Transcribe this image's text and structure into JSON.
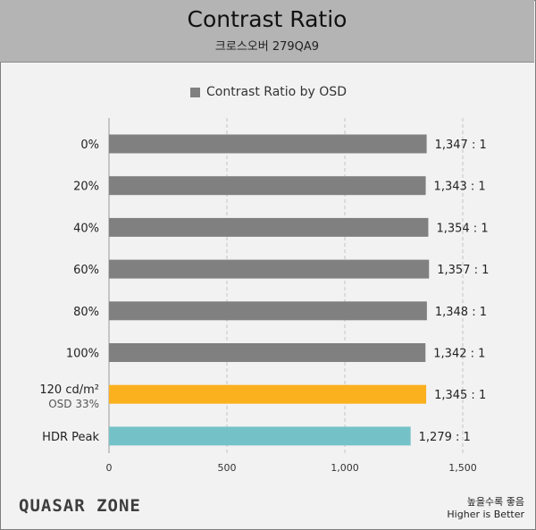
{
  "header": {
    "title": "Contrast Ratio",
    "subtitle": "크로스오버 279QA9"
  },
  "legend": {
    "label": "Contrast Ratio by OSD",
    "color": "#808080"
  },
  "footer": {
    "logo": "QUASAR ZONE",
    "note_ko": "높을수록 좋음",
    "note_en": "Higher is Better"
  },
  "chart_data": {
    "type": "bar",
    "orientation": "horizontal",
    "title": "Contrast Ratio",
    "subtitle": "크로스오버 279QA9",
    "categories": [
      "0%",
      "20%",
      "40%",
      "60%",
      "80%",
      "100%",
      "120 cd/m²",
      "HDR Peak"
    ],
    "category_sublabels": [
      "",
      "",
      "",
      "",
      "",
      "",
      "OSD 33%",
      ""
    ],
    "values": [
      1347,
      1343,
      1354,
      1357,
      1348,
      1342,
      1345,
      1279
    ],
    "value_labels": [
      "1,347 : 1",
      "1,343 : 1",
      "1,354 : 1",
      "1,357 : 1",
      "1,348 : 1",
      "1,342 : 1",
      "1,345 : 1",
      "1,279 : 1"
    ],
    "bar_colors": [
      "#808080",
      "#808080",
      "#808080",
      "#808080",
      "#808080",
      "#808080",
      "#fbb01e",
      "#74c2c8"
    ],
    "series": [
      {
        "name": "Contrast Ratio by OSD",
        "values": [
          1347,
          1343,
          1354,
          1357,
          1348,
          1342,
          1345,
          1279
        ]
      }
    ],
    "xlim": [
      0,
      1500
    ],
    "xticks": [
      0,
      500,
      1000,
      1500
    ],
    "xtick_labels": [
      "0",
      "500",
      "1,000",
      "1,500"
    ],
    "grid": true,
    "legend_position": "top-center"
  }
}
